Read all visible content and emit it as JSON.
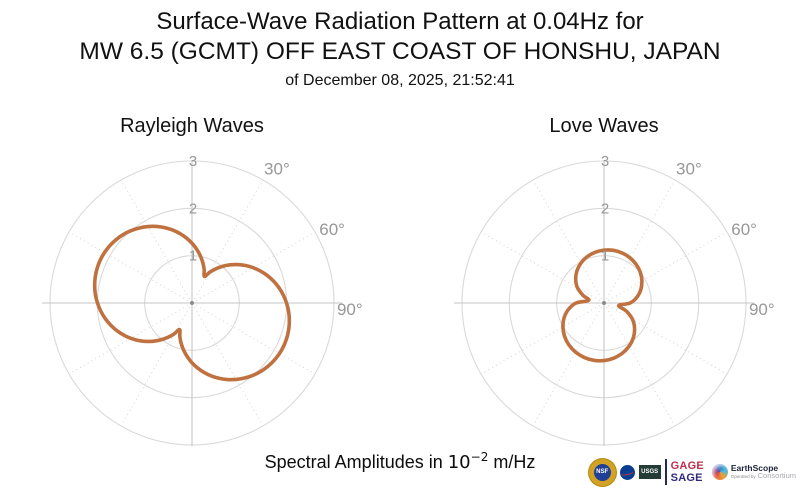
{
  "header": {
    "title_line1": "Surface-Wave Radiation Pattern at 0.04Hz for",
    "title_line2": "MW 6.5 (GCMT) OFF EAST COAST OF HONSHU, JAPAN",
    "subtitle": "of December 08, 2025, 21:52:41"
  },
  "caption": {
    "prefix": "Spectral Amplitudes in ",
    "base": "10",
    "exponent": "−2",
    "unit": " m/Hz"
  },
  "footer": {
    "nsf_label": "NSF",
    "usgs_label": "USGS",
    "gage_label": "GAGE",
    "sage_label": "SAGE",
    "earthscope_label": "EarthScope",
    "operated_by_label": "Operated by",
    "consortium_label": "Consortium"
  },
  "chart_data": [
    {
      "type": "line",
      "polar": true,
      "title": "Rayleigh Waves",
      "r_axis_max": 3,
      "ring_values": [
        1,
        2,
        3
      ],
      "r_tick_labels": [
        "1",
        "2",
        "3"
      ],
      "angle_ticks": [
        {
          "deg": 30,
          "label": "30°"
        },
        {
          "deg": 60,
          "label": "60°"
        },
        {
          "deg": 90,
          "label": "90°"
        }
      ],
      "spoke_step_deg": 30,
      "line_color": "#bf7140",
      "theta_deg": [
        0,
        5,
        10,
        15,
        20,
        25,
        30,
        35,
        40,
        45,
        50,
        55,
        60,
        65,
        70,
        75,
        80,
        85,
        90,
        95,
        100,
        105,
        110,
        115,
        120,
        125,
        130,
        135,
        140,
        145,
        150,
        155,
        160,
        165,
        170,
        175,
        180,
        185,
        190,
        195,
        200,
        205,
        210,
        215,
        220,
        225,
        230,
        235,
        240,
        245,
        250,
        255,
        260,
        265,
        270,
        275,
        280,
        285,
        290,
        295,
        300,
        305,
        310,
        315,
        320,
        325,
        330,
        335,
        340,
        345,
        350,
        355
      ],
      "r": [
        1.263,
        1.14,
        1.014,
        0.884,
        0.752,
        0.62,
        0.752,
        0.884,
        1.014,
        1.14,
        1.263,
        1.38,
        1.492,
        1.597,
        1.695,
        1.784,
        1.865,
        1.936,
        1.997,
        2.049,
        2.088,
        2.117,
        2.134,
        2.14,
        2.134,
        2.117,
        2.088,
        2.049,
        1.997,
        1.936,
        1.865,
        1.784,
        1.695,
        1.597,
        1.492,
        1.38,
        1.263,
        1.14,
        1.014,
        0.884,
        0.752,
        0.62,
        0.752,
        0.884,
        1.014,
        1.14,
        1.263,
        1.38,
        1.492,
        1.597,
        1.695,
        1.784,
        1.865,
        1.936,
        1.997,
        2.049,
        2.088,
        2.117,
        2.134,
        2.14,
        2.134,
        2.117,
        2.088,
        2.049,
        1.997,
        1.936,
        1.865,
        1.784,
        1.695,
        1.597,
        1.492,
        1.38
      ]
    },
    {
      "type": "line",
      "polar": true,
      "title": "Love Waves",
      "r_axis_max": 3,
      "ring_values": [
        1,
        2,
        3
      ],
      "r_tick_labels": [
        "1",
        "2",
        "3"
      ],
      "angle_ticks": [
        {
          "deg": 30,
          "label": "30°"
        },
        {
          "deg": 60,
          "label": "60°"
        },
        {
          "deg": 90,
          "label": "90°"
        }
      ],
      "spoke_step_deg": 30,
      "line_color": "#bf7140",
      "theta_deg": [
        0,
        10,
        20,
        30,
        40,
        50,
        60,
        70,
        80,
        90,
        100,
        110,
        120,
        130,
        140,
        150,
        160,
        170,
        180,
        190,
        200,
        210,
        220,
        230,
        240,
        250,
        260,
        270,
        280,
        290,
        300,
        310,
        320,
        330,
        340,
        350
      ],
      "r": [
        1.117,
        1.13,
        1.124,
        1.101,
        1.061,
        1.003,
        0.924,
        0.828,
        0.706,
        0.552,
        0.316,
        0.503,
        0.697,
        0.844,
        0.963,
        1.057,
        1.13,
        1.183,
        1.216,
        1.23,
        1.224,
        1.198,
        1.154,
        1.089,
        1.002,
        0.895,
        0.76,
        0.589,
        0.329,
        0.473,
        0.649,
        0.781,
        0.889,
        0.974,
        1.04,
        1.087
      ]
    }
  ],
  "style": {
    "ring_color": "#d9d9d9",
    "axis_color": "#c6c6c6",
    "spoke_color": "#d6d6d6",
    "tick_label_color": "#979797",
    "center_dot_color": "#8c8c8c"
  }
}
